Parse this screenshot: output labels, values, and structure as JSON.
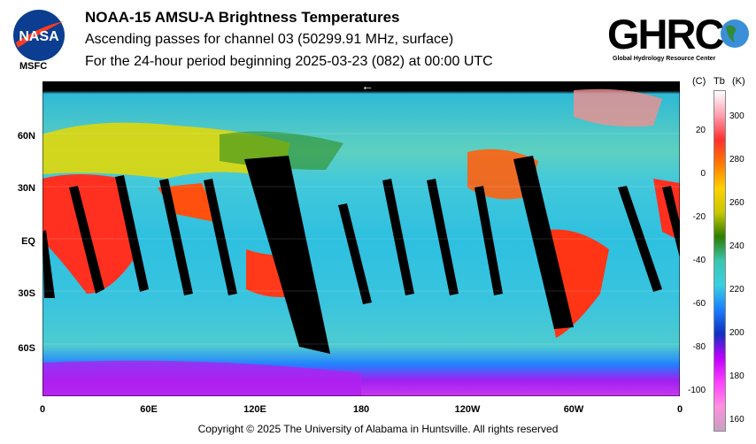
{
  "header": {
    "title": "NOAA-15 AMSU-A Brightness Temperatures",
    "subtitle": "Ascending passes for channel 03 (50299.91 MHz, surface)",
    "period": "For the 24-hour period beginning 2025-03-23 (082) at 00:00 UTC"
  },
  "logos": {
    "nasa": "NASA",
    "msfc": "MSFC",
    "ghrc": "GHRC",
    "ghrc_full": "Global Hydrology Resource Center"
  },
  "map": {
    "lat_labels": [
      "60N",
      "30N",
      "EQ",
      "30S",
      "60S"
    ],
    "lon_labels": [
      "0",
      "60E",
      "120E",
      "180",
      "120W",
      "60W",
      "0"
    ],
    "direction_arrow": "←"
  },
  "colorbar": {
    "unit_c": "(C)",
    "unit_tb": "Tb",
    "unit_k": "(K)",
    "celsius_ticks": [
      "20",
      "0",
      "-20",
      "-40",
      "-60",
      "-80",
      "-100"
    ],
    "kelvin_ticks": [
      "300",
      "280",
      "260",
      "240",
      "220",
      "200",
      "180",
      "160"
    ],
    "colors": [
      "#ffffff",
      "#ff9fb0",
      "#ff3030",
      "#ff7a00",
      "#ffd000",
      "#c8c800",
      "#2e7d00",
      "#39c7b0",
      "#39d0e0",
      "#1a7fff",
      "#1030c0",
      "#c000ff",
      "#ff40ff",
      "#ff90e0",
      "#c8a0c0"
    ]
  },
  "footer": "Copyright © 2025 The University of Alabama in Huntsville.  All rights reserved"
}
